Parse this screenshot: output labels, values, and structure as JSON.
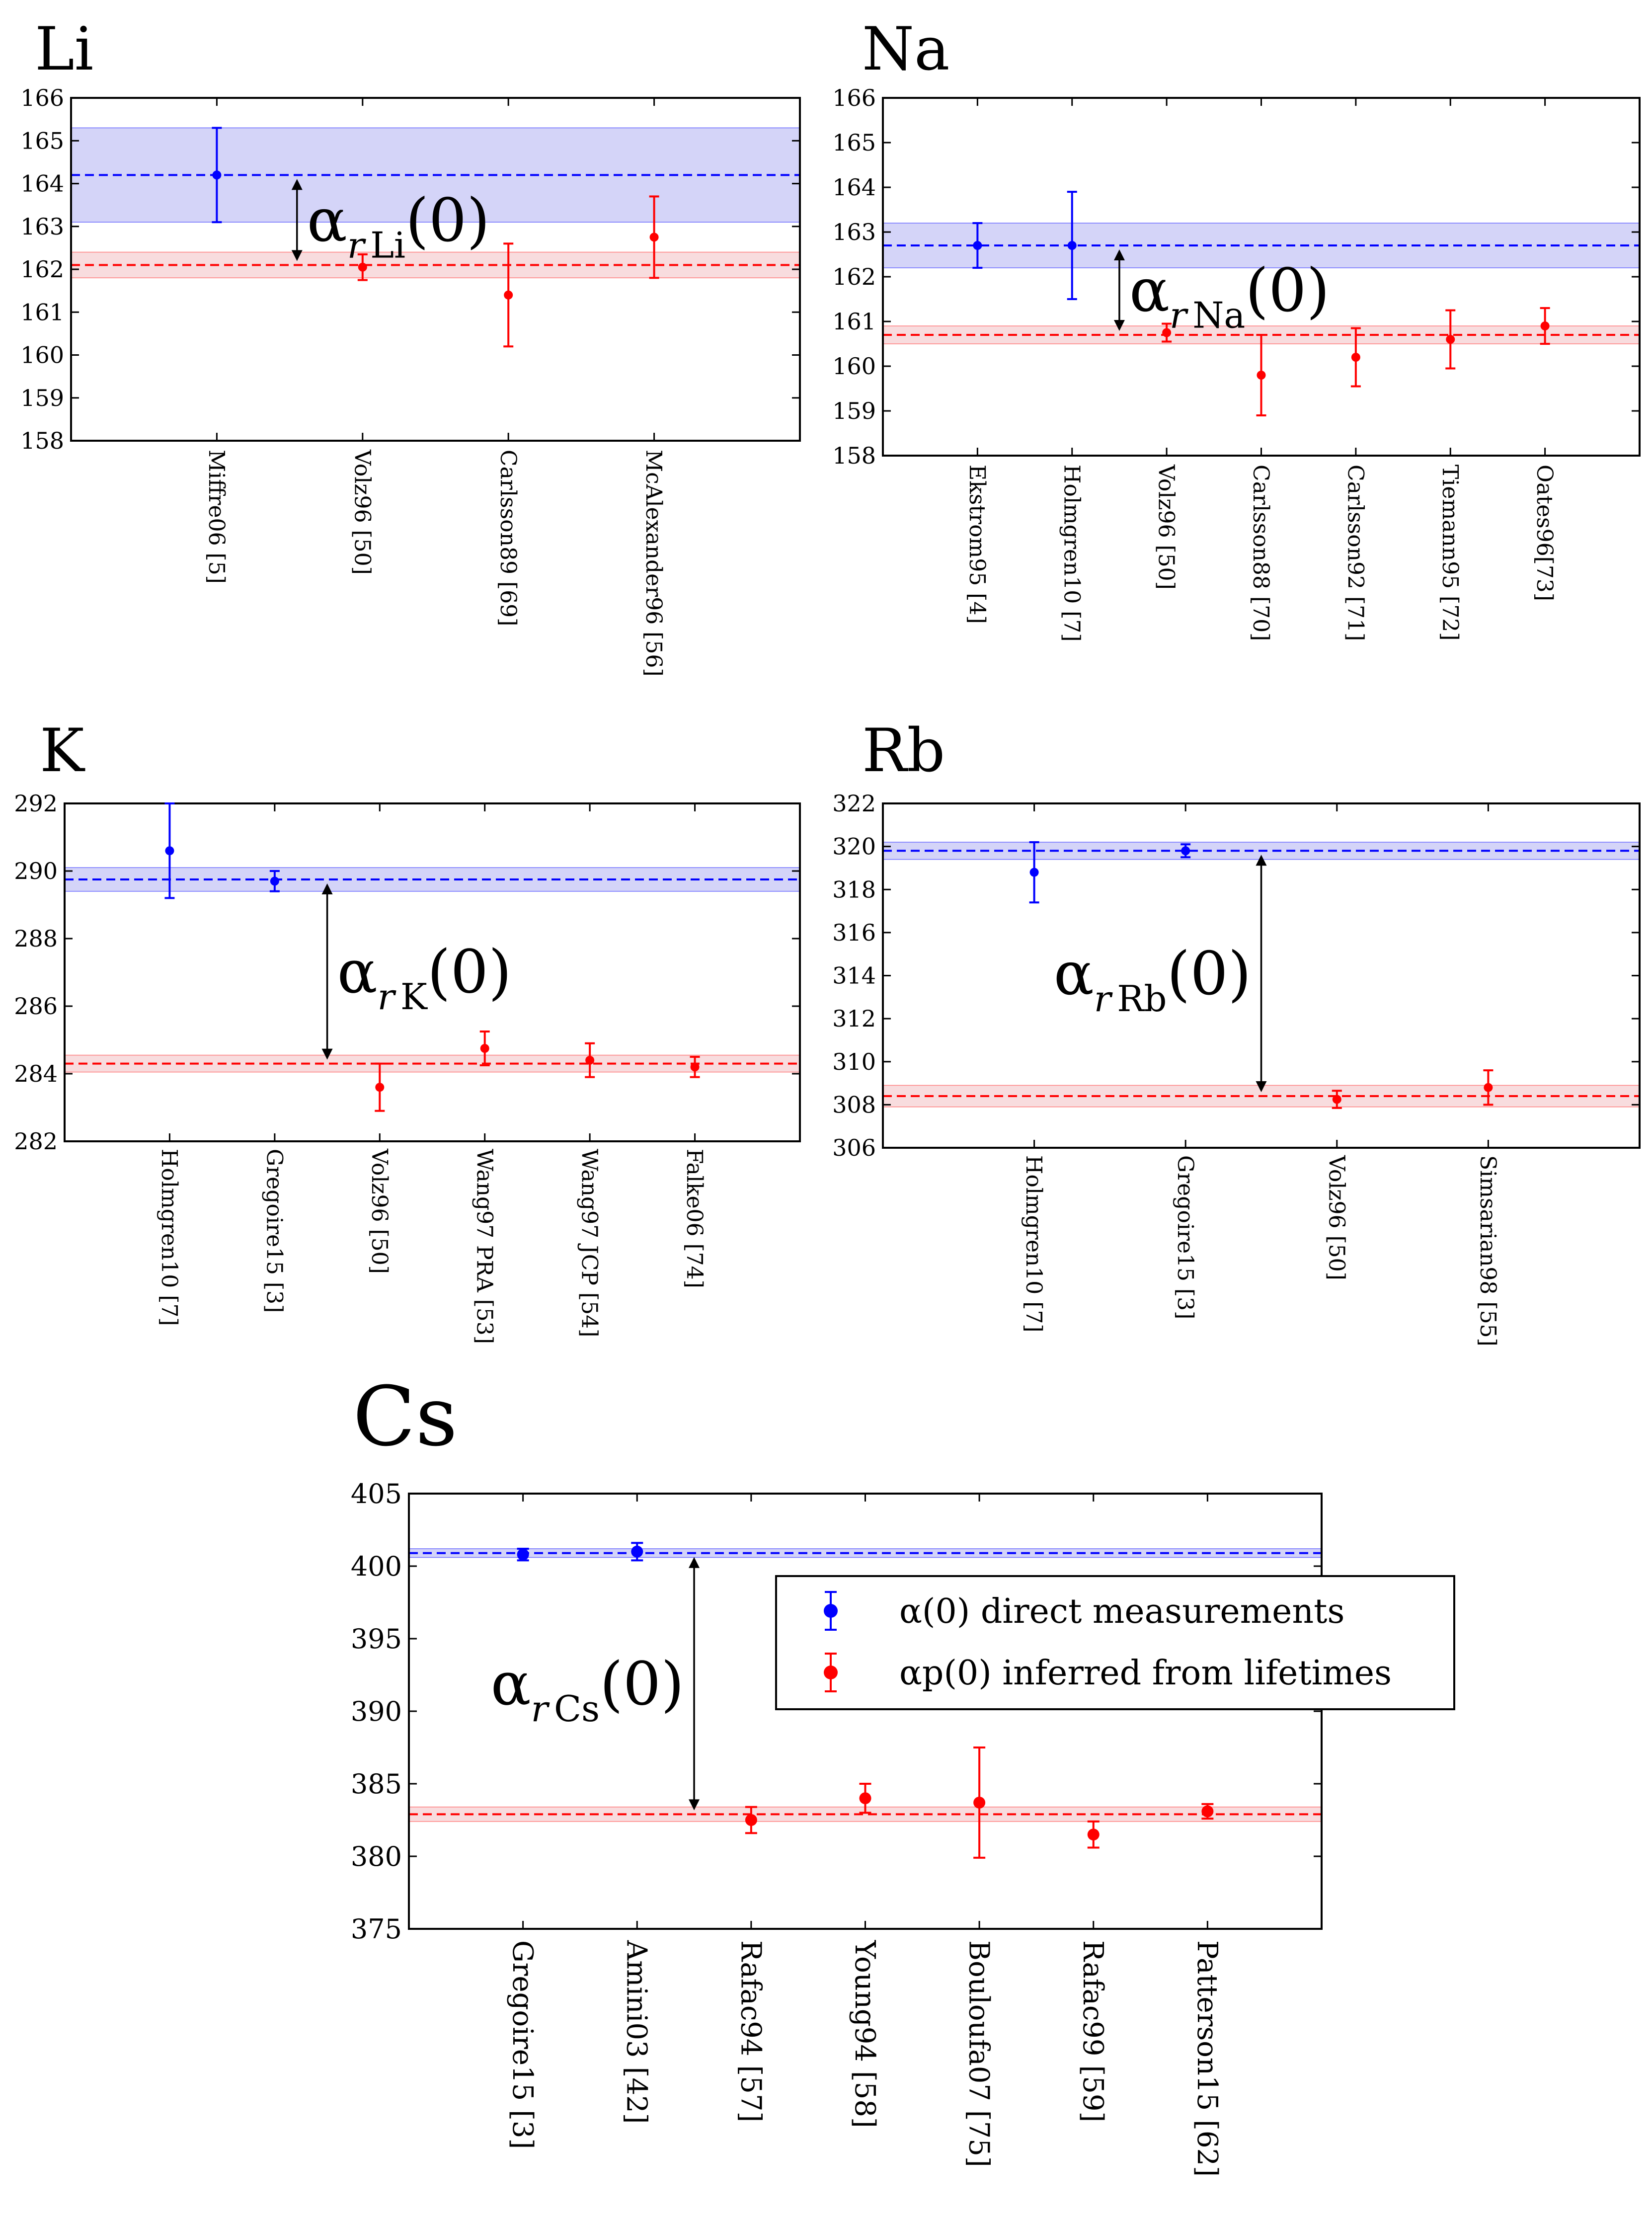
{
  "figure_kind": "polarizability comparison panels",
  "colors": {
    "direct": "#0000ff",
    "inferred": "#ff0000",
    "direct_band": "#b8b8f4",
    "inferred_band": "#f4c4c8",
    "axes": "#000000"
  },
  "legend": {
    "direct_label": "α(0) direct measurements",
    "inferred_label": "αp(0) inferred from lifetimes"
  },
  "chart_data": [
    {
      "panel": "Li",
      "type": "scatter",
      "title": "Li",
      "annotation": {
        "alpha": "α",
        "sub": "r",
        "atom": "Li",
        "arg": "(0)"
      },
      "ylim": [
        158,
        166
      ],
      "yticks": [
        158,
        159,
        160,
        161,
        162,
        163,
        164,
        165,
        166
      ],
      "categories": [
        "Miffre06 [5]",
        "Volz96 [50]",
        "Carlsson89 [69]",
        "McAlexander96 [56]"
      ],
      "points": [
        {
          "x": 0,
          "value": 164.2,
          "err": 1.1,
          "kind": "direct"
        },
        {
          "x": 1,
          "value": 162.05,
          "err": 0.3,
          "kind": "inferred"
        },
        {
          "x": 2,
          "value": 161.4,
          "err": 1.2,
          "kind": "inferred"
        },
        {
          "x": 3,
          "value": 162.75,
          "err": 0.95,
          "kind": "inferred"
        }
      ],
      "direct_mean": 164.2,
      "direct_band": [
        163.1,
        165.3
      ],
      "inferred_mean": 162.1,
      "inferred_band": [
        161.8,
        162.4
      ],
      "arrow_x": 0.55,
      "annotation_anchor": "arrow-right"
    },
    {
      "panel": "Na",
      "type": "scatter",
      "title": "Na",
      "annotation": {
        "alpha": "α",
        "sub": "r",
        "atom": "Na",
        "arg": "(0)"
      },
      "ylim": [
        158,
        166
      ],
      "yticks": [
        158,
        159,
        160,
        161,
        162,
        163,
        164,
        165,
        166
      ],
      "categories": [
        "Ekstrom95 [4]",
        "Holmgren10 [7]",
        "Volz96 [50]",
        "Carlsson88 [70]",
        "Carlsson92 [71]",
        "Tiemann95 [72]",
        "Oates96[73]"
      ],
      "points": [
        {
          "x": 0,
          "value": 162.7,
          "err": 0.5,
          "kind": "direct"
        },
        {
          "x": 1,
          "value": 162.7,
          "err": 1.2,
          "kind": "direct"
        },
        {
          "x": 2,
          "value": 160.75,
          "err": 0.2,
          "kind": "inferred"
        },
        {
          "x": 3,
          "value": 159.8,
          "err": 0.9,
          "kind": "inferred"
        },
        {
          "x": 4,
          "value": 160.2,
          "err": 0.65,
          "kind": "inferred"
        },
        {
          "x": 5,
          "value": 160.6,
          "err": 0.65,
          "kind": "inferred"
        },
        {
          "x": 6,
          "value": 160.9,
          "err": 0.4,
          "kind": "inferred"
        }
      ],
      "direct_mean": 162.7,
      "direct_band": [
        162.2,
        163.2
      ],
      "inferred_mean": 160.7,
      "inferred_band": [
        160.5,
        160.9
      ],
      "arrow_x": 1.5,
      "annotation_anchor": "arrow-right"
    },
    {
      "panel": "K",
      "type": "scatter",
      "title": "K",
      "annotation": {
        "alpha": "α",
        "sub": "r",
        "atom": "K",
        "arg": "(0)"
      },
      "ylim": [
        282,
        292
      ],
      "yticks": [
        282,
        284,
        286,
        288,
        290,
        292
      ],
      "categories": [
        "Holmgren10 [7]",
        "Gregoire15 [3]",
        "Volz96 [50]",
        "Wang97 PRA [53]",
        "Wang97 JCP [54]",
        "Falke06 [74]"
      ],
      "points": [
        {
          "x": 0,
          "value": 290.6,
          "err": 1.4,
          "kind": "direct"
        },
        {
          "x": 1,
          "value": 289.7,
          "err": 0.3,
          "kind": "direct"
        },
        {
          "x": 2,
          "value": 283.6,
          "err": 0.7,
          "kind": "inferred"
        },
        {
          "x": 3,
          "value": 284.75,
          "err": 0.5,
          "kind": "inferred"
        },
        {
          "x": 4,
          "value": 284.4,
          "err": 0.5,
          "kind": "inferred"
        },
        {
          "x": 5,
          "value": 284.2,
          "err": 0.3,
          "kind": "inferred"
        }
      ],
      "direct_mean": 289.75,
      "direct_band": [
        289.4,
        290.1
      ],
      "inferred_mean": 284.3,
      "inferred_band": [
        284.05,
        284.55
      ],
      "arrow_x": 1.5,
      "annotation_anchor": "arrow-right"
    },
    {
      "panel": "Rb",
      "type": "scatter",
      "title": "Rb",
      "annotation": {
        "alpha": "α",
        "sub": "r",
        "atom": "Rb",
        "arg": "(0)"
      },
      "ylim": [
        306,
        322
      ],
      "yticks": [
        306,
        308,
        310,
        312,
        314,
        316,
        318,
        320,
        322
      ],
      "categories": [
        "Holmgren10 [7]",
        "Gregoire15 [3]",
        "Volz96 [50]",
        "Simsarian98 [55]"
      ],
      "points": [
        {
          "x": 0,
          "value": 318.8,
          "err": 1.4,
          "kind": "direct"
        },
        {
          "x": 1,
          "value": 319.8,
          "err": 0.3,
          "kind": "direct"
        },
        {
          "x": 2,
          "value": 308.25,
          "err": 0.4,
          "kind": "inferred"
        },
        {
          "x": 3,
          "value": 308.8,
          "err": 0.8,
          "kind": "inferred"
        }
      ],
      "direct_mean": 319.8,
      "direct_band": [
        319.4,
        320.2
      ],
      "inferred_mean": 308.4,
      "inferred_band": [
        307.9,
        308.9
      ],
      "arrow_x": 1.5,
      "annotation_anchor": "arrow-left"
    },
    {
      "panel": "Cs",
      "type": "scatter",
      "title": "Cs",
      "annotation": {
        "alpha": "α",
        "sub": "r",
        "atom": "Cs",
        "arg": "(0)"
      },
      "ylim": [
        375,
        405
      ],
      "yticks": [
        375,
        380,
        385,
        390,
        395,
        400,
        405
      ],
      "categories": [
        "Gregoire15 [3]",
        "Amini03 [42]",
        "Rafac94 [57]",
        "Young94 [58]",
        "Bouloufa07 [75]",
        "Rafac99 [59]",
        "Patterson15 [62]"
      ],
      "points": [
        {
          "x": 0,
          "value": 400.8,
          "err": 0.4,
          "kind": "direct"
        },
        {
          "x": 1,
          "value": 401.0,
          "err": 0.6,
          "kind": "direct"
        },
        {
          "x": 2,
          "value": 382.5,
          "err": 0.9,
          "kind": "inferred"
        },
        {
          "x": 3,
          "value": 384.0,
          "err": 1.0,
          "kind": "inferred"
        },
        {
          "x": 4,
          "value": 383.7,
          "err": 3.8,
          "kind": "inferred"
        },
        {
          "x": 5,
          "value": 381.5,
          "err": 0.9,
          "kind": "inferred"
        },
        {
          "x": 6,
          "value": 383.1,
          "err": 0.5,
          "kind": "inferred"
        }
      ],
      "direct_mean": 400.9,
      "direct_band": [
        400.6,
        401.2
      ],
      "inferred_mean": 382.9,
      "inferred_band": [
        382.4,
        383.4
      ],
      "arrow_x": 1.5,
      "annotation_anchor": "arrow-left",
      "legend_placement": "upper-right"
    }
  ]
}
